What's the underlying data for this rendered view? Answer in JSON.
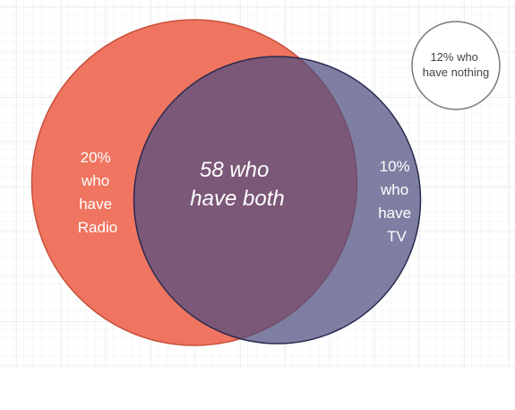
{
  "venn": {
    "radio_label": [
      "20%",
      "who",
      "have",
      "Radio"
    ],
    "both_label": [
      "58 who",
      "have both"
    ],
    "tv_label": [
      "10%",
      "who",
      "have",
      "TV"
    ],
    "nothing_label": [
      "12% who",
      "have nothing"
    ]
  }
}
